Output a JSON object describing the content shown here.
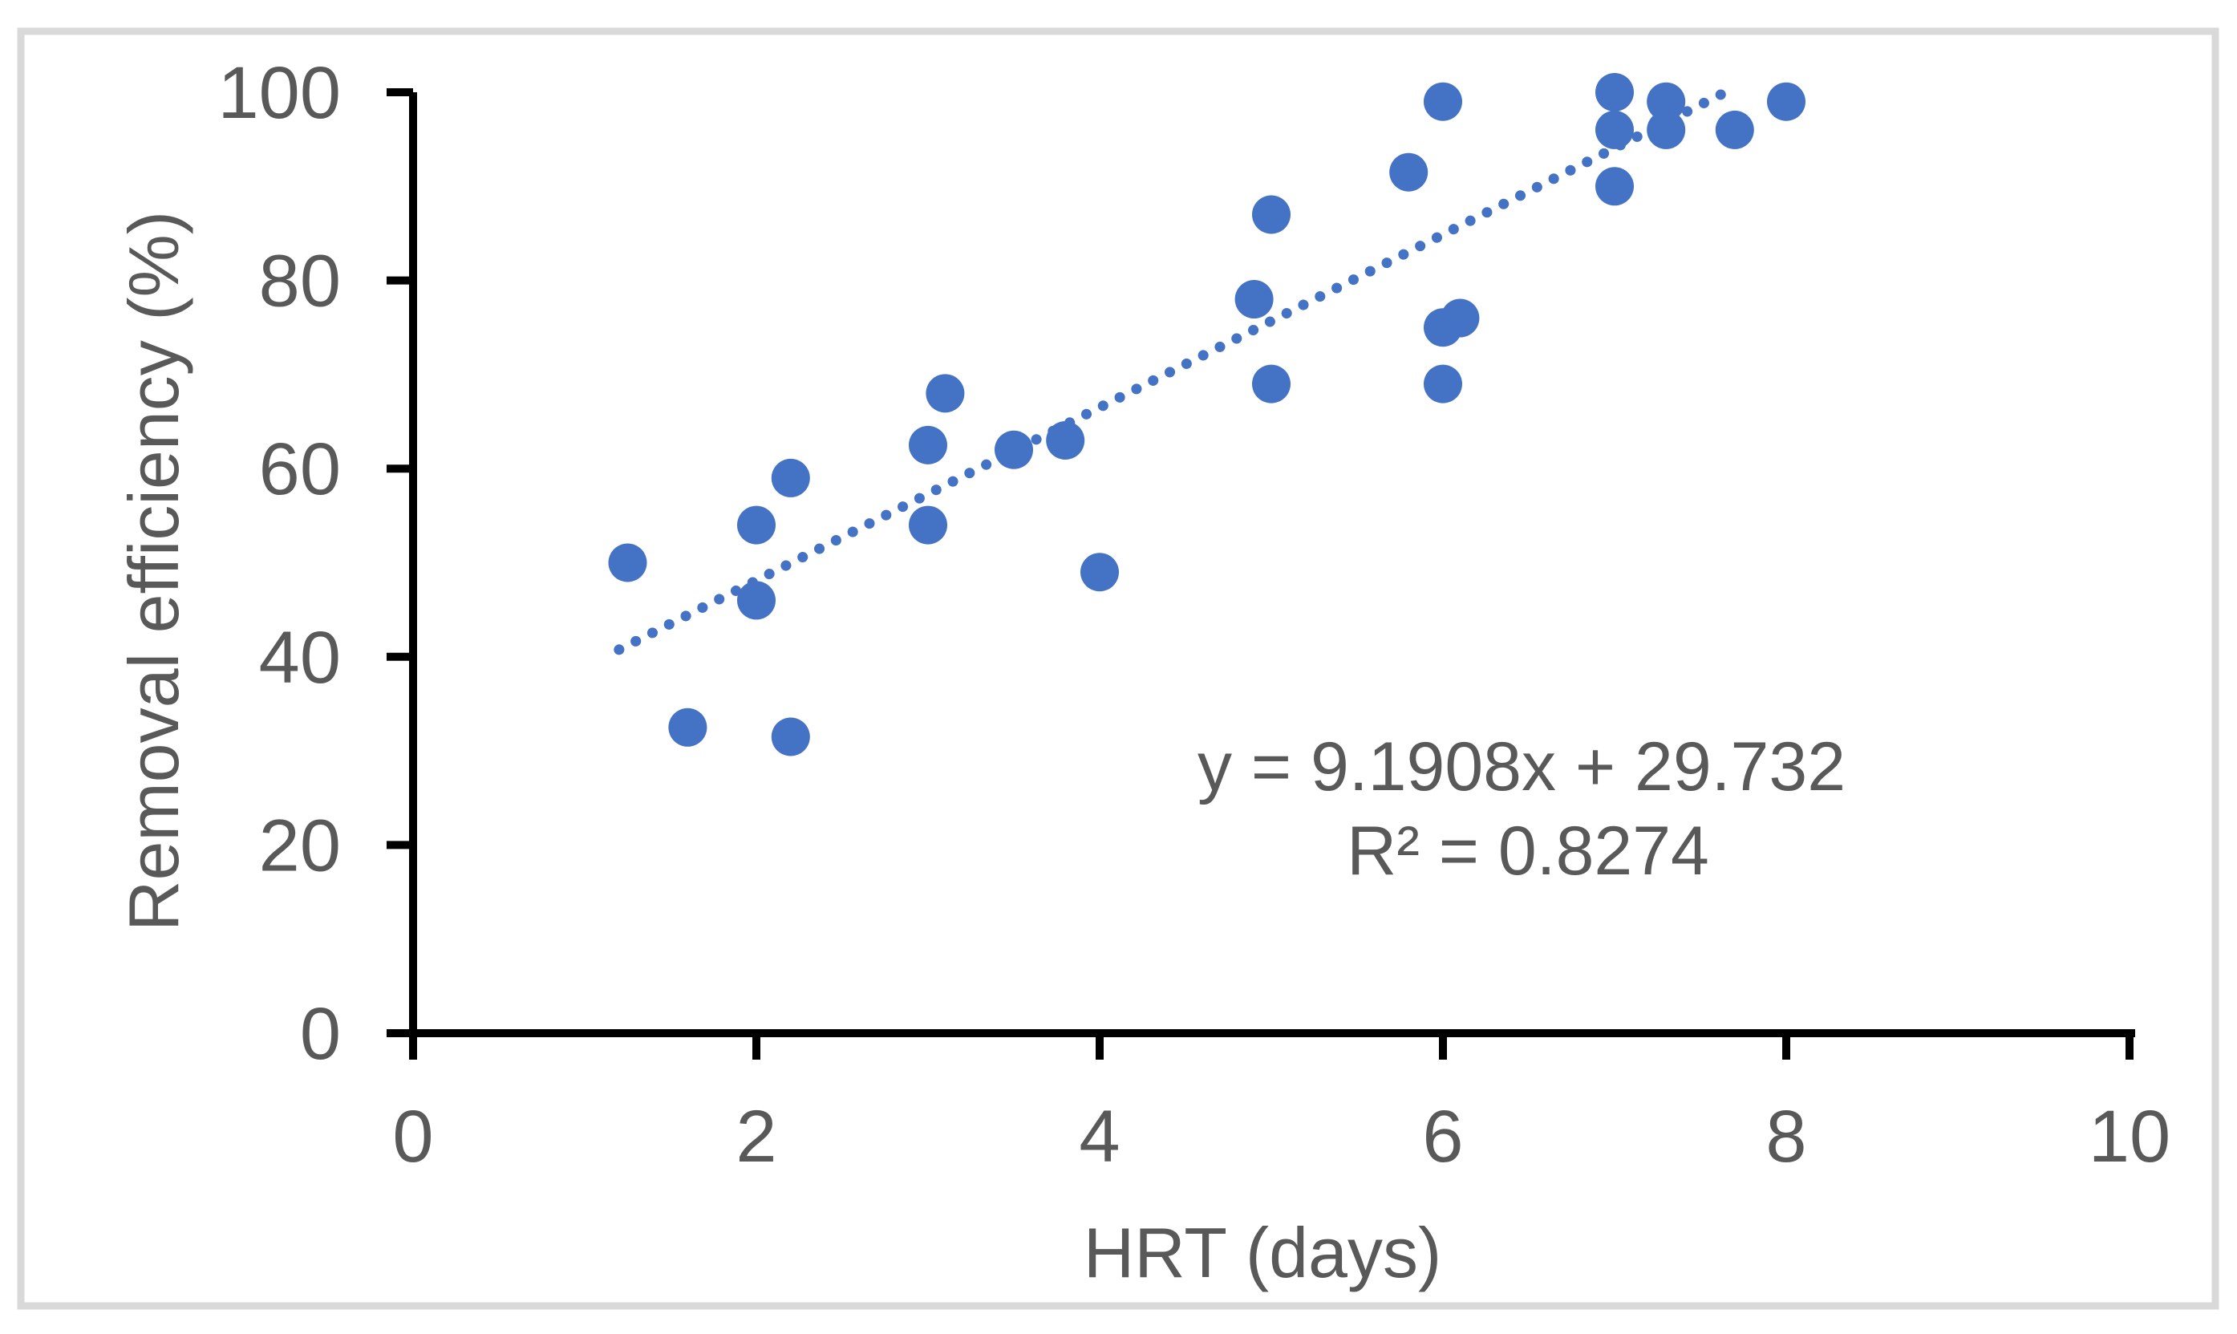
{
  "chart_data": {
    "type": "scatter",
    "title": "",
    "xlabel": "HRT (days)",
    "ylabel": "Removal efficiency (%)",
    "xlim": [
      0,
      10
    ],
    "ylim": [
      0,
      100
    ],
    "xticks": [
      0,
      2,
      4,
      6,
      8,
      10
    ],
    "yticks": [
      0,
      20,
      40,
      60,
      80,
      100
    ],
    "grid": false,
    "legend": false,
    "series": [
      {
        "name": "Removal efficiency vs HRT",
        "points": [
          [
            1.25,
            50
          ],
          [
            1.6,
            32.5
          ],
          [
            2,
            54
          ],
          [
            2,
            46
          ],
          [
            2.2,
            59
          ],
          [
            2.2,
            31.5
          ],
          [
            3,
            62.5
          ],
          [
            3,
            54
          ],
          [
            3.1,
            68
          ],
          [
            3.5,
            62
          ],
          [
            3.8,
            63
          ],
          [
            4,
            49
          ],
          [
            4.9,
            78
          ],
          [
            5,
            87
          ],
          [
            5,
            69
          ],
          [
            5.8,
            91.5
          ],
          [
            6,
            99
          ],
          [
            6,
            75
          ],
          [
            6.1,
            76
          ],
          [
            6,
            69
          ],
          [
            7,
            100
          ],
          [
            7,
            96
          ],
          [
            7,
            90
          ],
          [
            7.3,
            99
          ],
          [
            7.3,
            96
          ],
          [
            7.7,
            96
          ],
          [
            8,
            99
          ]
        ]
      }
    ],
    "trendline": {
      "equation": "y = 9.1908x + 29.732",
      "r_squared_label": "R² = 0.8274",
      "slope": 9.1908,
      "intercept": 29.732,
      "x_start": 1.2,
      "x_end": 7.62,
      "style": "dotted"
    },
    "colors": {
      "marker": "#4472C4",
      "trendline": "#4472C4",
      "axis": "#000000",
      "text": "#595959",
      "frame_border": "#D9D9D9"
    }
  }
}
